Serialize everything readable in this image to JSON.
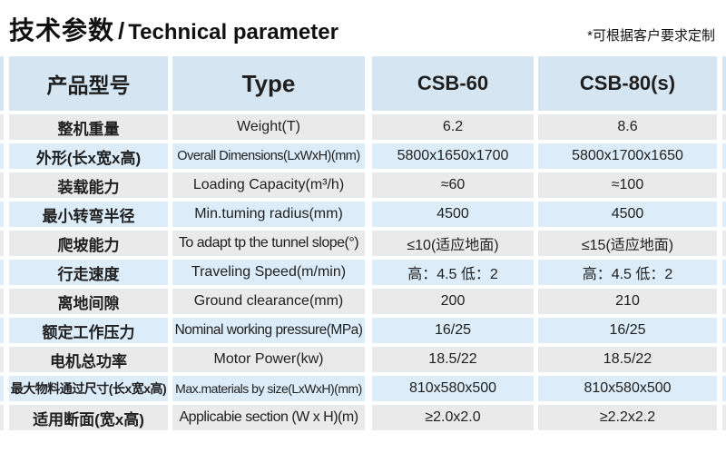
{
  "header": {
    "title_zh": "技术参数",
    "title_sep": "/",
    "title_en": "Technical parameter",
    "note": "*可根据客户要求定制"
  },
  "table": {
    "columns": {
      "param_zh": "产品型号",
      "param_en": "Type",
      "model1": "CSB-60",
      "model2": "CSB-80(s)"
    },
    "rows": [
      {
        "name_zh": "整机重量",
        "name_en": "Weight(T)",
        "csb60": "6.2",
        "csb80": "8.6"
      },
      {
        "name_zh": "外形(长x宽x高)",
        "name_en": "Overall Dimensions(LxWxH)(mm)",
        "csb60": "5800x1650x1700",
        "csb80": "5800x1700x1650"
      },
      {
        "name_zh": "装载能力",
        "name_en": "Loading Capacity(m³/h)",
        "csb60": "≈60",
        "csb80": "≈100"
      },
      {
        "name_zh": "最小转弯半径",
        "name_en": "Min.tuming radius(mm)",
        "csb60": "4500",
        "csb80": "4500"
      },
      {
        "name_zh": "爬坡能力",
        "name_en": "To adapt tp the tunnel slope(°)",
        "csb60": "≤10(适应地面)",
        "csb80": "≤15(适应地面)"
      },
      {
        "name_zh": "行走速度",
        "name_en": "Traveling Speed(m/min)",
        "csb60": "高：4.5 低：2",
        "csb80": "高：4.5 低：2"
      },
      {
        "name_zh": "离地间隙",
        "name_en": "Ground clearance(mm)",
        "csb60": "200",
        "csb80": "210"
      },
      {
        "name_zh": "额定工作压力",
        "name_en": "Nominal working pressure(MPa)",
        "csb60": "16/25",
        "csb80": "16/25"
      },
      {
        "name_zh": "电机总功率",
        "name_en": "Motor Power(kw)",
        "csb60": "18.5/22",
        "csb80": "18.5/22"
      },
      {
        "name_zh": "最大物料通过尺寸(长x宽x高)",
        "name_en": "Max.materials by size(LxWxH)(mm)",
        "csb60": "810x580x500",
        "csb80": "810x580x500"
      },
      {
        "name_zh": "适用断面(宽x高)",
        "name_en": "Applicabie section (W x H)(m)",
        "csb60": "≥2.0x2.0",
        "csb80": "≥2.2x2.2"
      }
    ]
  },
  "colors": {
    "header_bg": "#d5e5f2",
    "row_blue": "#dcecf9",
    "row_gray": "#eaeaea",
    "text": "#1f1f1f"
  }
}
